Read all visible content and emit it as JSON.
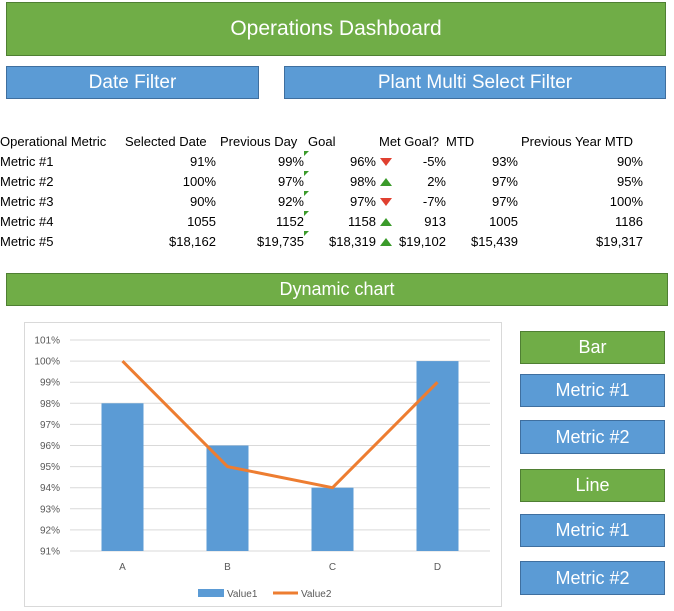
{
  "header": {
    "title": "Operations Dashboard"
  },
  "filters": {
    "date": "Date Filter",
    "plant": "Plant Multi Select Filter"
  },
  "table": {
    "headers": [
      "Operational Metric",
      "Selected Date",
      "Previous Day",
      "Goal",
      "Met Goal?",
      "MTD",
      "Previous Year MTD"
    ],
    "rows": [
      {
        "metric": "Metric #1",
        "selected": "91%",
        "previous": "99%",
        "goal": "96%",
        "met": "down",
        "metPct": "-5%",
        "mtd": "93%",
        "pymtd": "90%"
      },
      {
        "metric": "Metric #2",
        "selected": "100%",
        "previous": "97%",
        "goal": "98%",
        "met": "up",
        "metPct": "2%",
        "mtd": "97%",
        "pymtd": "95%"
      },
      {
        "metric": "Metric #3",
        "selected": "90%",
        "previous": "92%",
        "goal": "97%",
        "met": "down",
        "metPct": "-7%",
        "mtd": "97%",
        "pymtd": "100%"
      },
      {
        "metric": "Metric #4",
        "selected": "1055",
        "previous": "1152",
        "goal": "1158",
        "met": "up",
        "metPct": "913",
        "mtd": "1005",
        "pymtd": "1186"
      },
      {
        "metric": "Metric #5",
        "selected": "$18,162",
        "previous": "$19,735",
        "goal": "$18,319",
        "met": "up",
        "metPct": "$19,102",
        "mtd": "$15,439",
        "pymtd": "$19,317"
      }
    ]
  },
  "chart_section": {
    "title": "Dynamic chart"
  },
  "chart_data": {
    "type": "bar",
    "categories": [
      "A",
      "B",
      "C",
      "D"
    ],
    "series": [
      {
        "name": "Value1",
        "type": "bar",
        "values": [
          98,
          96,
          94,
          100
        ],
        "color": "#5b9bd5"
      },
      {
        "name": "Value2",
        "type": "line",
        "values": [
          100,
          95,
          94,
          99
        ],
        "color": "#ed7d31"
      }
    ],
    "ylim": [
      91,
      101
    ],
    "yticks": [
      "91%",
      "92%",
      "93%",
      "94%",
      "95%",
      "96%",
      "97%",
      "98%",
      "99%",
      "100%",
      "101%"
    ],
    "grid": true,
    "legend": "bottom"
  },
  "controls": {
    "bar_label": "Bar",
    "bar_metric1": "Metric #1",
    "bar_metric2": "Metric #2",
    "line_label": "Line",
    "line_metric1": "Metric #1",
    "line_metric2": "Metric #2"
  }
}
